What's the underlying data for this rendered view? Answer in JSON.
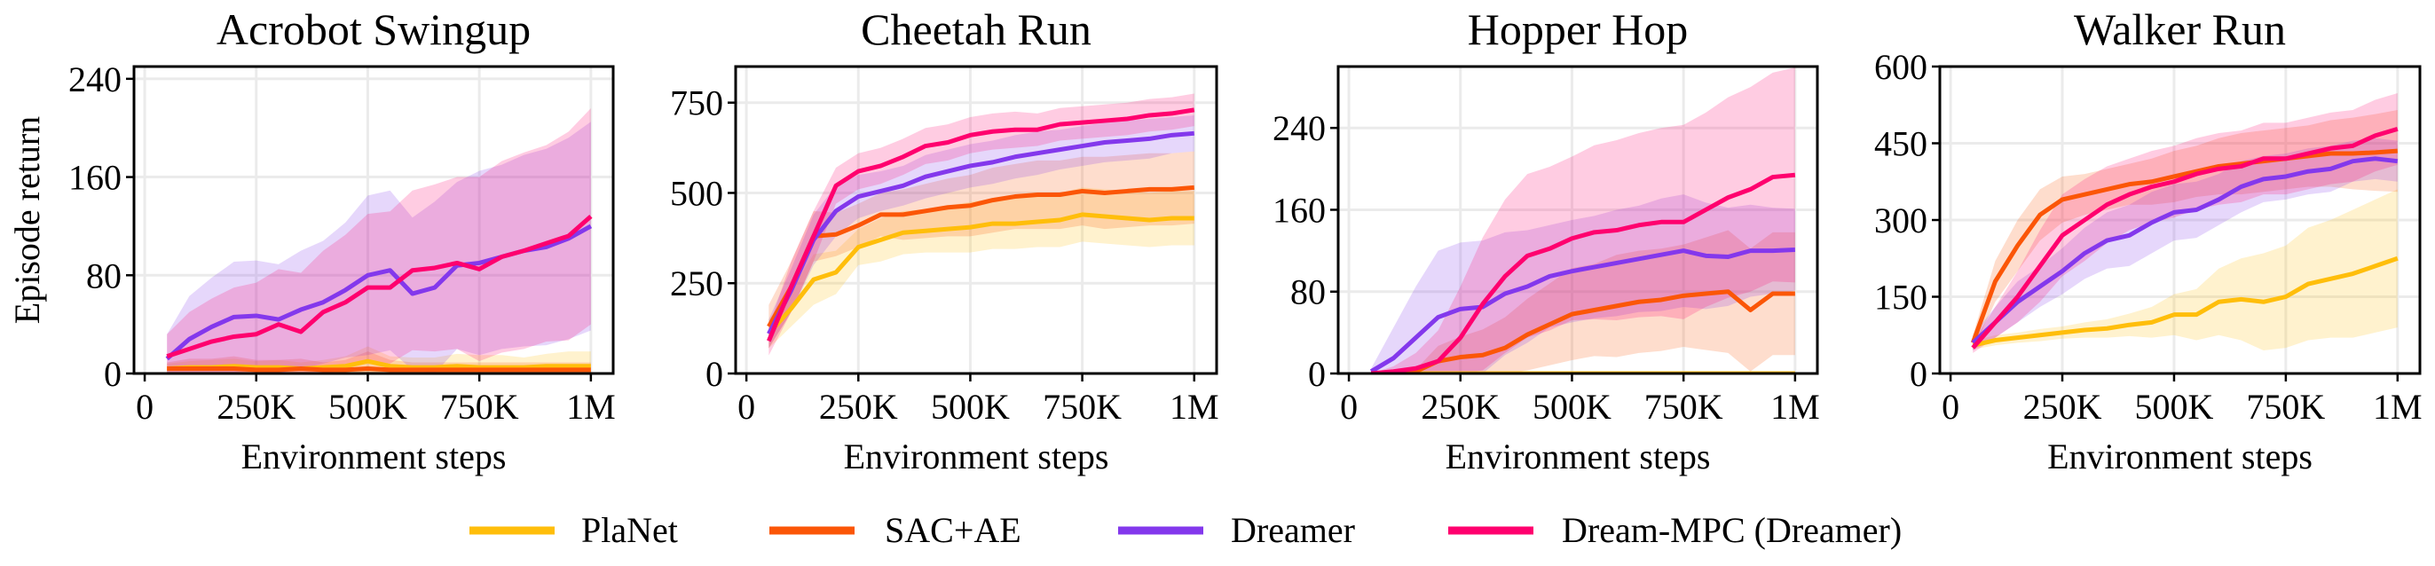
{
  "colors": {
    "PlaNet": "#FFBE0B",
    "SAC+AE": "#FB5607",
    "Dreamer": "#8338EC",
    "Dream-MPC (Dreamer)": "#FF006E"
  },
  "legend": {
    "placement": "bottom-center",
    "entries": [
      "PlaNet",
      "SAC+AE",
      "Dreamer",
      "Dream-MPC (Dreamer)"
    ]
  },
  "chart_data": [
    {
      "type": "line",
      "title": "Acrobot Swingup",
      "xlabel": "Environment steps",
      "ylabel": "Episode return",
      "xlim": [
        -24000,
        1050000
      ],
      "ylim": [
        0,
        250
      ],
      "grid": true,
      "xticks": [
        0,
        250000,
        500000,
        750000,
        1000000
      ],
      "xtick_labels": [
        "0",
        "250K",
        "500K",
        "750K",
        "1M"
      ],
      "yticks": [
        0,
        80,
        160,
        240
      ],
      "ytick_labels": [
        "0",
        "80",
        "160",
        "240"
      ],
      "x": [
        50000,
        100000,
        150000,
        200000,
        250000,
        300000,
        350000,
        400000,
        450000,
        500000,
        550000,
        600000,
        650000,
        700000,
        750000,
        800000,
        850000,
        900000,
        950000,
        1000000
      ],
      "series": [
        {
          "name": "PlaNet",
          "mean": [
            4,
            5,
            5,
            6,
            5,
            5,
            4,
            5,
            6,
            10,
            6,
            5,
            5,
            6,
            5,
            5,
            5,
            6,
            6,
            6
          ],
          "std": [
            4,
            5,
            6,
            6,
            5,
            6,
            5,
            6,
            8,
            12,
            8,
            8,
            8,
            10,
            10,
            10,
            8,
            10,
            12,
            12
          ]
        },
        {
          "name": "SAC+AE",
          "mean": [
            4,
            4,
            4,
            4,
            3,
            3,
            4,
            3,
            3,
            4,
            3,
            3,
            3,
            3,
            3,
            3,
            3,
            3,
            3,
            3
          ],
          "std": [
            5,
            8,
            8,
            10,
            8,
            8,
            8,
            6,
            8,
            14,
            8,
            6,
            6,
            6,
            6,
            6,
            6,
            6,
            6,
            6
          ]
        },
        {
          "name": "Dreamer",
          "mean": [
            12,
            28,
            38,
            46,
            47,
            44,
            52,
            58,
            68,
            80,
            84,
            65,
            70,
            88,
            90,
            95,
            100,
            103,
            110,
            120
          ],
          "std": [
            20,
            35,
            40,
            45,
            45,
            45,
            48,
            50,
            55,
            65,
            65,
            62,
            70,
            68,
            75,
            75,
            78,
            80,
            82,
            85
          ]
        },
        {
          "name": "Dream-MPC (Dreamer)",
          "mean": [
            14,
            20,
            26,
            30,
            32,
            40,
            34,
            50,
            58,
            70,
            70,
            84,
            86,
            90,
            85,
            95,
            100,
            106,
            112,
            128
          ],
          "std": [
            18,
            30,
            35,
            40,
            42,
            45,
            48,
            50,
            55,
            60,
            62,
            65,
            68,
            70,
            75,
            78,
            80,
            80,
            85,
            88
          ]
        }
      ]
    },
    {
      "type": "line",
      "title": "Cheetah Run",
      "xlabel": "Environment steps",
      "ylabel": "",
      "xlim": [
        -24000,
        1050000
      ],
      "ylim": [
        0,
        850
      ],
      "grid": true,
      "xticks": [
        0,
        250000,
        500000,
        750000,
        1000000
      ],
      "xtick_labels": [
        "0",
        "250K",
        "500K",
        "750K",
        "1M"
      ],
      "yticks": [
        0,
        250,
        500,
        750
      ],
      "ytick_labels": [
        "0",
        "250",
        "500",
        "750"
      ],
      "x": [
        50000,
        100000,
        150000,
        200000,
        250000,
        300000,
        350000,
        400000,
        450000,
        500000,
        550000,
        600000,
        650000,
        700000,
        750000,
        800000,
        850000,
        900000,
        950000,
        1000000
      ],
      "series": [
        {
          "name": "PlaNet",
          "mean": [
            110,
            180,
            260,
            280,
            350,
            370,
            390,
            395,
            400,
            405,
            415,
            415,
            420,
            425,
            440,
            435,
            430,
            425,
            430,
            430
          ],
          "std": [
            40,
            50,
            70,
            60,
            50,
            60,
            60,
            60,
            65,
            70,
            70,
            70,
            70,
            75,
            75,
            75,
            75,
            75,
            75,
            75
          ]
        },
        {
          "name": "SAC+AE",
          "mean": [
            130,
            240,
            380,
            385,
            410,
            440,
            440,
            450,
            460,
            465,
            480,
            490,
            495,
            495,
            505,
            500,
            505,
            510,
            510,
            515
          ],
          "std": [
            60,
            70,
            70,
            60,
            60,
            60,
            70,
            75,
            80,
            85,
            90,
            90,
            95,
            95,
            95,
            100,
            100,
            100,
            100,
            100
          ]
        },
        {
          "name": "Dreamer",
          "mean": [
            110,
            230,
            370,
            450,
            490,
            505,
            520,
            545,
            560,
            575,
            585,
            600,
            610,
            620,
            630,
            640,
            645,
            650,
            660,
            665
          ],
          "std": [
            40,
            60,
            70,
            70,
            60,
            55,
            55,
            60,
            60,
            60,
            60,
            60,
            60,
            55,
            55,
            55,
            55,
            55,
            50,
            50
          ]
        },
        {
          "name": "Dream-MPC (Dreamer)",
          "mean": [
            90,
            240,
            380,
            520,
            560,
            575,
            600,
            630,
            640,
            660,
            670,
            675,
            675,
            690,
            695,
            700,
            705,
            715,
            720,
            730
          ],
          "std": [
            40,
            70,
            70,
            50,
            50,
            50,
            50,
            50,
            50,
            50,
            50,
            50,
            45,
            45,
            45,
            45,
            45,
            45,
            45,
            45
          ]
        }
      ]
    },
    {
      "type": "line",
      "title": "Hopper Hop",
      "xlabel": "Environment steps",
      "ylabel": "",
      "xlim": [
        -24000,
        1050000
      ],
      "ylim": [
        0,
        300
      ],
      "grid": true,
      "xticks": [
        0,
        250000,
        500000,
        750000,
        1000000
      ],
      "xtick_labels": [
        "0",
        "250K",
        "500K",
        "750K",
        "1M"
      ],
      "yticks": [
        0,
        80,
        160,
        240
      ],
      "ytick_labels": [
        "0",
        "80",
        "160",
        "240"
      ],
      "x": [
        50000,
        100000,
        150000,
        200000,
        250000,
        300000,
        350000,
        400000,
        450000,
        500000,
        550000,
        600000,
        650000,
        700000,
        750000,
        800000,
        850000,
        900000,
        950000,
        1000000
      ],
      "series": [
        {
          "name": "PlaNet",
          "mean": [
            0,
            0,
            0,
            0,
            0,
            0,
            0,
            0,
            0,
            0,
            0,
            0,
            0,
            0,
            0,
            0,
            0,
            0,
            0,
            0
          ],
          "std": [
            1,
            1,
            1,
            1,
            1,
            1,
            1,
            1,
            1,
            1,
            1,
            1,
            1,
            1,
            1,
            1,
            1,
            1,
            1,
            1
          ]
        },
        {
          "name": "SAC+AE",
          "mean": [
            0,
            0,
            2,
            12,
            16,
            18,
            25,
            38,
            48,
            58,
            62,
            66,
            70,
            72,
            76,
            78,
            80,
            62,
            78,
            78
          ],
          "std": [
            0,
            0,
            2,
            15,
            20,
            25,
            30,
            35,
            40,
            45,
            45,
            50,
            50,
            50,
            50,
            55,
            60,
            60,
            60,
            60
          ]
        },
        {
          "name": "Dreamer",
          "mean": [
            2,
            15,
            35,
            55,
            63,
            65,
            78,
            85,
            95,
            100,
            104,
            108,
            112,
            116,
            120,
            115,
            114,
            120,
            120,
            121
          ],
          "std": [
            3,
            30,
            50,
            65,
            65,
            65,
            60,
            55,
            50,
            50,
            50,
            52,
            52,
            55,
            55,
            52,
            48,
            45,
            42,
            40
          ]
        },
        {
          "name": "Dream-MPC (Dreamer)",
          "mean": [
            0,
            2,
            5,
            12,
            35,
            68,
            95,
            115,
            122,
            132,
            138,
            140,
            145,
            148,
            148,
            160,
            172,
            180,
            192,
            194
          ],
          "std": [
            0,
            5,
            15,
            30,
            50,
            65,
            75,
            80,
            80,
            80,
            85,
            88,
            90,
            92,
            95,
            95,
            98,
            100,
            102,
            105
          ]
        }
      ]
    },
    {
      "type": "line",
      "title": "Walker Run",
      "xlabel": "Environment steps",
      "ylabel": "",
      "xlim": [
        -24000,
        1050000
      ],
      "ylim": [
        0,
        600
      ],
      "grid": true,
      "xticks": [
        0,
        250000,
        500000,
        750000,
        1000000
      ],
      "xtick_labels": [
        "0",
        "250K",
        "500K",
        "750K",
        "1M"
      ],
      "yticks": [
        0,
        150,
        300,
        450,
        600
      ],
      "ytick_labels": [
        "0",
        "150",
        "300",
        "450",
        "600"
      ],
      "x": [
        50000,
        100000,
        150000,
        200000,
        250000,
        300000,
        350000,
        400000,
        450000,
        500000,
        550000,
        600000,
        650000,
        700000,
        750000,
        800000,
        850000,
        900000,
        950000,
        1000000
      ],
      "series": [
        {
          "name": "PlaNet",
          "mean": [
            55,
            65,
            70,
            75,
            80,
            85,
            88,
            95,
            100,
            115,
            115,
            140,
            145,
            140,
            150,
            175,
            185,
            195,
            210,
            225
          ],
          "std": [
            8,
            10,
            10,
            12,
            12,
            15,
            18,
            22,
            30,
            40,
            50,
            65,
            80,
            95,
            100,
            110,
            115,
            125,
            130,
            135
          ]
        },
        {
          "name": "SAC+AE",
          "mean": [
            60,
            180,
            250,
            310,
            340,
            350,
            360,
            370,
            375,
            385,
            395,
            405,
            410,
            415,
            420,
            425,
            430,
            430,
            432,
            435
          ],
          "std": [
            15,
            40,
            50,
            50,
            45,
            40,
            40,
            40,
            45,
            50,
            50,
            55,
            60,
            60,
            60,
            60,
            65,
            70,
            75,
            80
          ]
        },
        {
          "name": "Dreamer",
          "mean": [
            60,
            100,
            140,
            170,
            200,
            235,
            260,
            270,
            295,
            315,
            320,
            340,
            365,
            380,
            385,
            395,
            400,
            415,
            420,
            415
          ],
          "std": [
            15,
            30,
            40,
            40,
            45,
            50,
            55,
            60,
            60,
            55,
            55,
            50,
            50,
            45,
            45,
            45,
            45,
            40,
            40,
            40
          ]
        },
        {
          "name": "Dream-MPC (Dreamer)",
          "mean": [
            50,
            100,
            150,
            210,
            270,
            300,
            330,
            350,
            365,
            375,
            390,
            400,
            405,
            420,
            420,
            430,
            440,
            445,
            465,
            478
          ],
          "std": [
            10,
            30,
            50,
            70,
            80,
            80,
            75,
            70,
            70,
            70,
            70,
            70,
            70,
            70,
            70,
            70,
            70,
            70,
            70,
            70
          ]
        }
      ]
    }
  ]
}
